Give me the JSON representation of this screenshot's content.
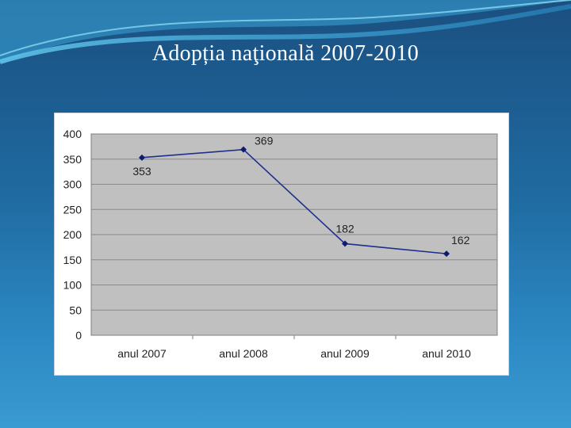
{
  "slide": {
    "title": "Adopția naţională 2007-2010"
  },
  "colors": {
    "line": "#1f2f8c",
    "marker": "#0d1a6e",
    "plot_bg": "#c0c0c0",
    "grid": "#8a8a8a"
  },
  "chart_data": {
    "type": "line",
    "title": "",
    "xlabel": "",
    "ylabel": "",
    "categories": [
      "anul 2007",
      "anul 2008",
      "anul 2009",
      "anul 2010"
    ],
    "values": [
      353,
      369,
      182,
      162
    ],
    "data_labels": [
      "353",
      "369",
      "182",
      "162"
    ],
    "ylim": [
      0,
      400
    ],
    "yticks": [
      "0",
      "50",
      "100",
      "150",
      "200",
      "250",
      "300",
      "350",
      "400"
    ],
    "grid": true,
    "legend": "none"
  }
}
